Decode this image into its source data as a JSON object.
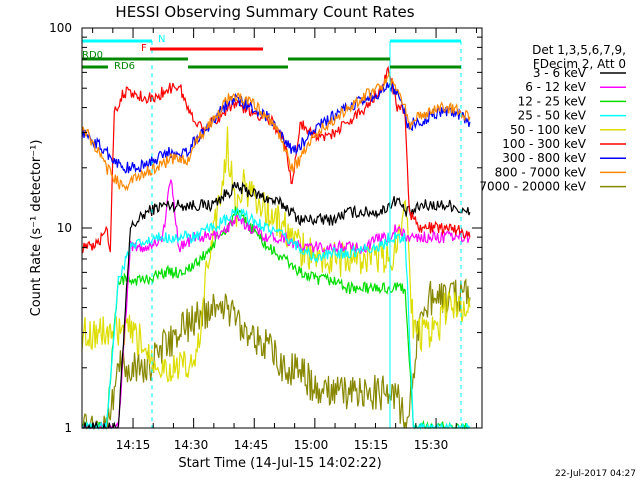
{
  "chart_data": {
    "type": "line",
    "title": "HESSI Observing Summary Count Rates",
    "xlabel": "Start Time (14-Jul-15 14:02:22)",
    "ylabel": "Count Rate (s⁻¹ detector⁻¹)",
    "yscale": "log",
    "ylim": [
      1,
      100
    ],
    "xlim_minutes": [
      0,
      99
    ],
    "x_ticks": [
      "14:15",
      "14:30",
      "14:45",
      "15:00",
      "15:15",
      "15:30"
    ],
    "y_ticks": [
      "1",
      "10",
      "100"
    ],
    "legend": {
      "header": [
        "Det 1,3,5,6,7,9,",
        "FDecim 2, Att 0"
      ],
      "placement": "right",
      "entries": [
        {
          "label": "3 - 6 keV",
          "color": "#000000"
        },
        {
          "label": "6 - 12 keV",
          "color": "#ff00ff"
        },
        {
          "label": "12 - 25 keV",
          "color": "#00dd00"
        },
        {
          "label": "25 - 50 keV",
          "color": "#00ffff"
        },
        {
          "label": "50 - 100 keV",
          "color": "#dddd00"
        },
        {
          "label": "100 - 300 keV",
          "color": "#ff0000"
        },
        {
          "label": "300 - 800 keV",
          "color": "#0000ff"
        },
        {
          "label": "800 - 7000 keV",
          "color": "#ff8800"
        },
        {
          "label": "7000 - 20000 keV",
          "color": "#888800"
        }
      ]
    },
    "flags": [
      {
        "label": "N",
        "color": "#00ffff"
      },
      {
        "label": "F",
        "color": "#ff0000"
      },
      {
        "label": "RD0",
        "color": "#008800"
      },
      {
        "label": "RD6",
        "color": "#008800"
      }
    ],
    "series": [
      {
        "name": "3 - 6 keV",
        "x": [
          0,
          6,
          9,
          12,
          16,
          20,
          24,
          28,
          32,
          36,
          38,
          42,
          46,
          50,
          54,
          58,
          62,
          66,
          70,
          74,
          76,
          78,
          80,
          82,
          84,
          86,
          88,
          90,
          92,
          94,
          96
        ],
        "y": [
          1,
          1,
          1,
          10,
          12,
          13,
          13,
          13,
          13,
          15,
          16,
          15,
          14,
          13,
          11,
          11,
          11,
          12,
          12,
          12,
          13,
          14,
          12,
          12,
          13,
          13,
          13,
          13,
          13,
          12,
          12
        ]
      },
      {
        "name": "6 - 12 keV",
        "x": [
          0,
          6,
          9,
          12,
          16,
          20,
          22,
          24,
          28,
          32,
          36,
          38,
          42,
          46,
          50,
          54,
          58,
          62,
          66,
          70,
          74,
          76,
          78,
          80,
          82,
          84,
          86,
          88,
          90,
          92,
          94,
          96
        ],
        "y": [
          1,
          1,
          1,
          8,
          8,
          9,
          18,
          8,
          9,
          9,
          10,
          11,
          10,
          9,
          9,
          8,
          8,
          8,
          8,
          8,
          9,
          9,
          10,
          9,
          9,
          9,
          9,
          9,
          9,
          9,
          9,
          9
        ]
      },
      {
        "name": "12 - 25 keV",
        "x": [
          0,
          6,
          9,
          12,
          16,
          20,
          24,
          28,
          32,
          36,
          38,
          42,
          46,
          50,
          54,
          58,
          62,
          66,
          70,
          74,
          76,
          78,
          80,
          82,
          84,
          86,
          88,
          90,
          92,
          94,
          96
        ],
        "y": [
          1,
          1,
          5.5,
          5.5,
          5.5,
          6,
          6,
          6.5,
          8,
          10,
          12,
          10,
          8,
          7,
          6,
          5.5,
          5.5,
          5,
          5,
          5,
          5,
          5,
          5,
          1,
          1,
          1,
          1,
          1,
          1,
          1,
          1
        ]
      },
      {
        "name": "25 - 50 keV",
        "x": [
          0,
          6,
          9,
          12,
          16,
          20,
          24,
          28,
          32,
          36,
          38,
          42,
          46,
          50,
          54,
          58,
          62,
          66,
          70,
          74,
          76,
          78,
          80,
          82,
          84,
          86,
          88,
          90,
          92,
          94,
          96
        ],
        "y": [
          1,
          1,
          5.5,
          8,
          8.5,
          9,
          9,
          9,
          10,
          11,
          12,
          11,
          10,
          9,
          8,
          7,
          7.5,
          7.5,
          8,
          8,
          9,
          9,
          9,
          1,
          1,
          1,
          1,
          1,
          1,
          1,
          1
        ]
      },
      {
        "name": "50 - 100 keV",
        "x": [
          0,
          6,
          9,
          12,
          16,
          20,
          24,
          28,
          32,
          34,
          36,
          38,
          40,
          42,
          46,
          50,
          54,
          58,
          62,
          66,
          70,
          74,
          76,
          78,
          80,
          82,
          84,
          86,
          88,
          90,
          92,
          94,
          96
        ],
        "y": [
          3,
          3,
          3,
          3,
          2.5,
          2,
          2,
          2,
          9,
          13,
          27,
          12,
          16,
          15,
          12,
          10,
          8,
          7,
          7,
          7,
          7,
          7,
          7,
          8,
          16,
          3,
          3,
          3,
          3,
          4,
          4,
          4,
          4
        ]
      },
      {
        "name": "100 - 300 keV",
        "x": [
          0,
          3,
          5,
          6,
          7,
          8,
          9,
          10,
          14,
          18,
          20,
          24,
          27,
          30,
          33,
          36,
          38,
          42,
          46,
          50,
          52,
          54,
          57,
          60,
          66,
          70,
          74,
          76,
          78,
          80,
          81,
          82,
          84,
          86,
          88,
          90,
          92,
          94,
          96
        ],
        "y": [
          8,
          8,
          9,
          10,
          8,
          40,
          40,
          48,
          46,
          44,
          48,
          52,
          36,
          32,
          34,
          40,
          42,
          38,
          36,
          28,
          16,
          34,
          30,
          28,
          34,
          40,
          50,
          62,
          40,
          38,
          12,
          11,
          10,
          10,
          10,
          10,
          10,
          9.5,
          9
        ]
      },
      {
        "name": "300 - 800 keV",
        "x": [
          0,
          2,
          4,
          6,
          8,
          10,
          12,
          14,
          16,
          18,
          20,
          22,
          24,
          26,
          27,
          30,
          33,
          36,
          38,
          42,
          46,
          50,
          52,
          54,
          57,
          60,
          66,
          70,
          74,
          76,
          78,
          80,
          81,
          82,
          84,
          86,
          88,
          90,
          92,
          94,
          96
        ],
        "y": [
          30,
          28,
          26,
          24,
          22,
          20,
          20,
          20,
          21,
          22,
          23,
          24,
          24,
          24,
          26,
          30,
          36,
          42,
          44,
          40,
          36,
          28,
          24,
          26,
          30,
          34,
          40,
          44,
          48,
          52,
          46,
          38,
          30,
          34,
          34,
          36,
          38,
          38,
          38,
          36,
          34
        ]
      },
      {
        "name": "800 - 7000 keV",
        "x": [
          0,
          2,
          4,
          6,
          8,
          10,
          12,
          14,
          16,
          18,
          20,
          22,
          24,
          26,
          27,
          30,
          33,
          36,
          38,
          42,
          46,
          50,
          52,
          54,
          57,
          60,
          66,
          70,
          74,
          76,
          78,
          80,
          81,
          82,
          84,
          86,
          88,
          90,
          92,
          94,
          96
        ],
        "y": [
          32,
          28,
          24,
          20,
          18,
          16,
          17,
          18,
          19,
          20,
          21,
          22,
          22,
          22,
          24,
          30,
          36,
          44,
          46,
          42,
          36,
          26,
          20,
          22,
          28,
          32,
          40,
          46,
          50,
          56,
          48,
          40,
          32,
          36,
          36,
          38,
          40,
          40,
          40,
          38,
          36
        ]
      },
      {
        "name": "7000 - 20000 keV",
        "x": [
          0,
          6,
          9,
          12,
          16,
          20,
          24,
          28,
          32,
          34,
          36,
          38,
          42,
          46,
          50,
          54,
          58,
          62,
          66,
          70,
          74,
          76,
          78,
          80,
          82,
          84,
          86,
          88,
          90,
          92,
          94,
          96
        ],
        "y": [
          1,
          1,
          2,
          2,
          2,
          2.5,
          3,
          3.5,
          4,
          4.2,
          4,
          3.5,
          3,
          2.5,
          2,
          2,
          1.5,
          1.5,
          1.5,
          1.5,
          1.5,
          1.5,
          1.5,
          1,
          2,
          4,
          4.5,
          4.5,
          4.5,
          4.5,
          4.5,
          4.5
        ]
      }
    ]
  },
  "timestamp": "22-Jul-2017 04:27"
}
